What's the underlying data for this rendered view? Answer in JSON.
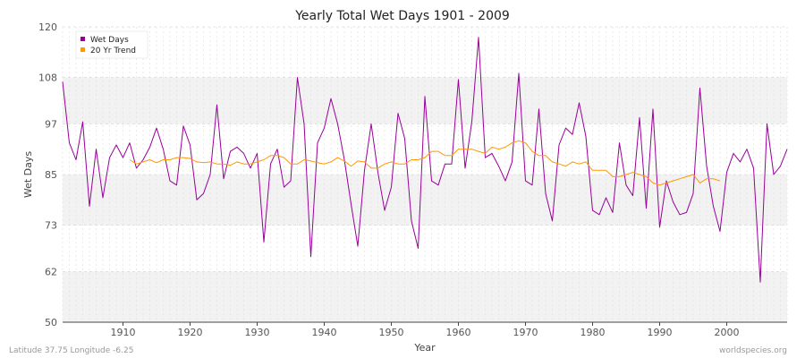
{
  "footer": {
    "location": "Latitude 37.75 Longitude -6.25",
    "source": "worldspecies.org"
  },
  "colors": {
    "wet_days": "#990099",
    "trend": "#ff9900",
    "band_light": "#f2f2f2",
    "band_white": "#ffffff"
  },
  "chart_data": {
    "type": "line",
    "title": "Yearly Total Wet Days 1901 - 2009",
    "xlabel": "Year",
    "ylabel": "Wet Days",
    "xlim": [
      1901,
      2009
    ],
    "ylim": [
      50,
      120
    ],
    "yticks": [
      50,
      62,
      73,
      85,
      97,
      108,
      120
    ],
    "xticks": [
      1910,
      1920,
      1930,
      1940,
      1950,
      1960,
      1970,
      1980,
      1990,
      2000
    ],
    "grid": true,
    "legend_position": "top-left",
    "series": [
      {
        "name": "Wet Days",
        "color": "#990099",
        "x": [
          1901,
          1902,
          1903,
          1904,
          1905,
          1906,
          1907,
          1908,
          1909,
          1910,
          1911,
          1912,
          1913,
          1914,
          1915,
          1916,
          1917,
          1918,
          1919,
          1920,
          1921,
          1922,
          1923,
          1924,
          1925,
          1926,
          1927,
          1928,
          1929,
          1930,
          1931,
          1932,
          1933,
          1934,
          1935,
          1936,
          1937,
          1938,
          1939,
          1940,
          1941,
          1942,
          1943,
          1944,
          1945,
          1946,
          1947,
          1948,
          1949,
          1950,
          1951,
          1952,
          1953,
          1954,
          1955,
          1956,
          1957,
          1958,
          1959,
          1960,
          1961,
          1962,
          1963,
          1964,
          1965,
          1966,
          1967,
          1968,
          1969,
          1970,
          1971,
          1972,
          1973,
          1974,
          1975,
          1976,
          1977,
          1978,
          1979,
          1980,
          1981,
          1982,
          1983,
          1984,
          1985,
          1986,
          1987,
          1988,
          1989,
          1990,
          1991,
          1992,
          1993,
          1994,
          1995,
          1996,
          1997,
          1998,
          1999,
          2000,
          2001,
          2002,
          2003,
          2004,
          2005,
          2006,
          2007,
          2008,
          2009
        ],
        "values": [
          107,
          92.5,
          88.5,
          97.5,
          77.5,
          91,
          79.5,
          89,
          92,
          89,
          92.5,
          86.5,
          88.5,
          91.5,
          96,
          91,
          83.5,
          82.5,
          96.5,
          92,
          79,
          80.5,
          85,
          101.5,
          84,
          90.5,
          91.5,
          90,
          86.5,
          90,
          69,
          87.5,
          91,
          82,
          83.5,
          108,
          97,
          65.5,
          92.5,
          96,
          103,
          97,
          88.5,
          78,
          68,
          86,
          97,
          85.5,
          76.5,
          82,
          99.5,
          93.5,
          74,
          67.5,
          103.5,
          83.5,
          82.5,
          87.5,
          87.5,
          107.5,
          86.5,
          97.5,
          117.5,
          89,
          90,
          87,
          83.5,
          88,
          109,
          83.5,
          82.5,
          100.5,
          80.5,
          74,
          92,
          96,
          94.5,
          102,
          94,
          76.5,
          75.5,
          79.5,
          76,
          92.5,
          82.5,
          80,
          98.5,
          77,
          100.5,
          72.5,
          83.5,
          78.5,
          75.5,
          76,
          80.5,
          105.5,
          87,
          77.5,
          71.5,
          85.5,
          90,
          88,
          91,
          86.5,
          59.5,
          97,
          85,
          87,
          91
        ]
      },
      {
        "name": "20 Yr Trend",
        "color": "#ff9900",
        "x": [
          1911,
          1912,
          1913,
          1914,
          1915,
          1916,
          1917,
          1918,
          1919,
          1920,
          1921,
          1922,
          1923,
          1924,
          1925,
          1926,
          1927,
          1928,
          1929,
          1930,
          1931,
          1932,
          1933,
          1934,
          1935,
          1936,
          1937,
          1938,
          1939,
          1940,
          1941,
          1942,
          1943,
          1944,
          1945,
          1946,
          1947,
          1948,
          1949,
          1950,
          1951,
          1952,
          1953,
          1954,
          1955,
          1956,
          1957,
          1958,
          1959,
          1960,
          1961,
          1962,
          1963,
          1964,
          1965,
          1966,
          1967,
          1968,
          1969,
          1970,
          1971,
          1972,
          1973,
          1974,
          1975,
          1976,
          1977,
          1978,
          1979,
          1980,
          1981,
          1982,
          1983,
          1984,
          1985,
          1986,
          1987,
          1988,
          1989,
          1990,
          1991,
          1992,
          1993,
          1994,
          1995,
          1996,
          1997,
          1998,
          1999
        ],
        "values": [
          88.5,
          87.5,
          88,
          88.5,
          87.8,
          88.5,
          88.5,
          89,
          89,
          88.8,
          88,
          87.8,
          88,
          87.5,
          87.5,
          87.2,
          88,
          87.5,
          87.5,
          88,
          88.5,
          89.5,
          89.5,
          89,
          87.5,
          87.5,
          88.5,
          88.2,
          87.8,
          87.5,
          88,
          89,
          88.2,
          87,
          88.2,
          88,
          86.5,
          86.5,
          87.5,
          88,
          87.5,
          87.5,
          88.5,
          88.5,
          89,
          90.5,
          90.5,
          89.5,
          89.5,
          91,
          91,
          91,
          90.5,
          90,
          91.5,
          91,
          91.5,
          92.5,
          93,
          92.5,
          90.5,
          89.5,
          89.5,
          88,
          87.5,
          87,
          88,
          87.5,
          88,
          86,
          86,
          86,
          84.5,
          84.5,
          85,
          85.5,
          85,
          84.5,
          83,
          82.5,
          83,
          83.5,
          84,
          84.5,
          85,
          83,
          84,
          84,
          83.5
        ]
      }
    ]
  }
}
